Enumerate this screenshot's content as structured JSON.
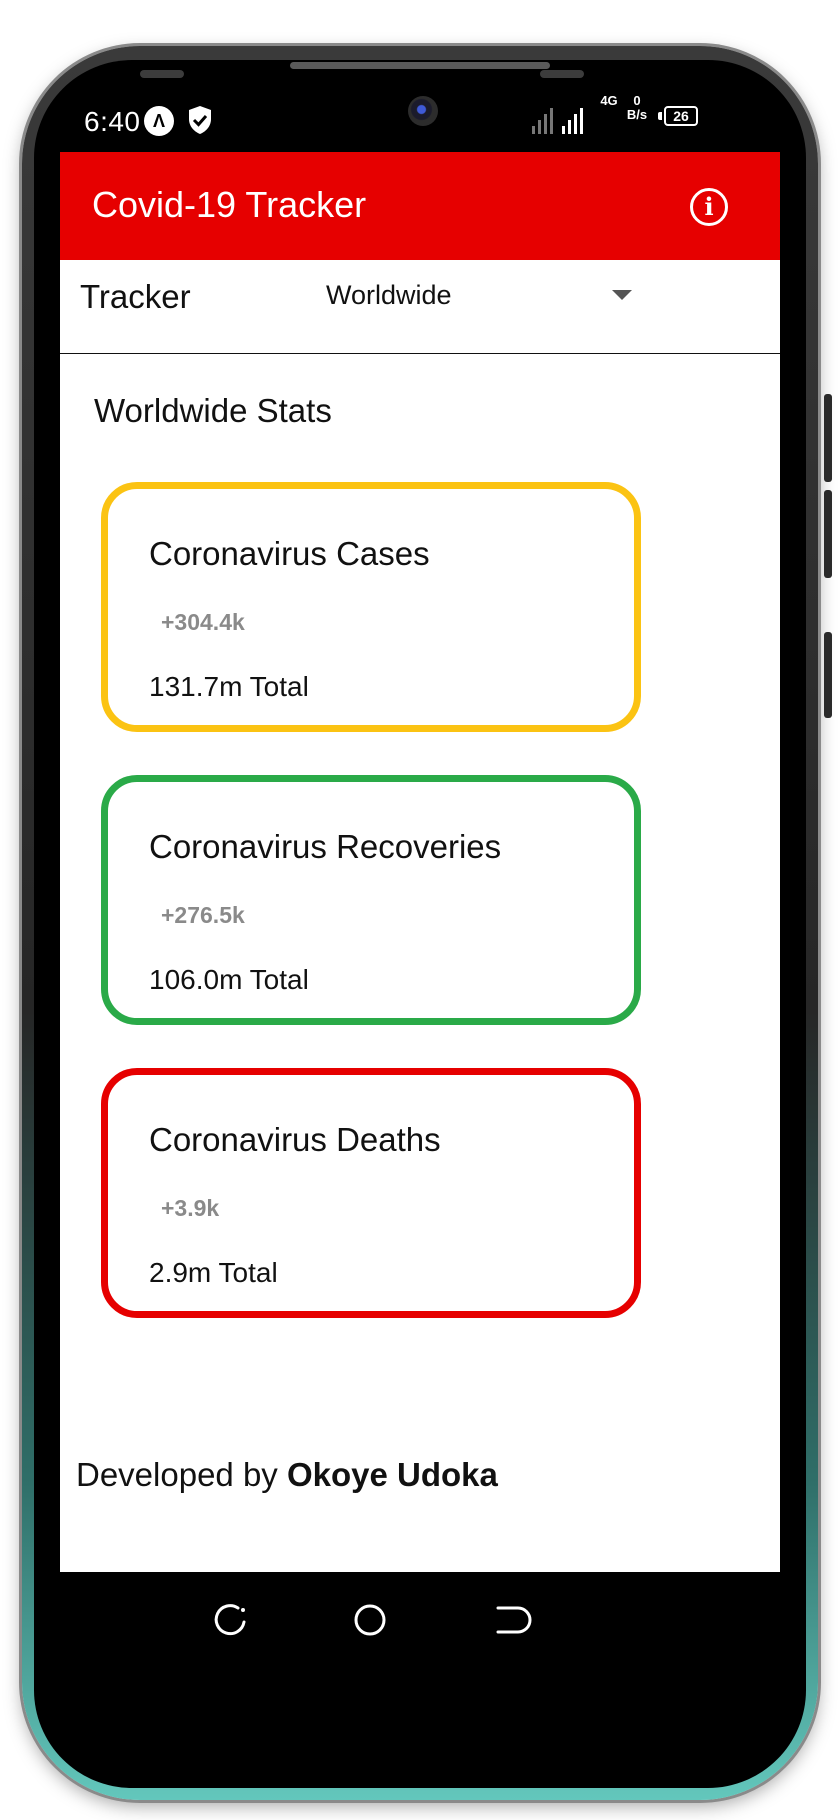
{
  "status_bar": {
    "time": "6:40",
    "network_type": "4G",
    "speed_value": "0",
    "speed_unit": "B/s",
    "battery": "26"
  },
  "app_bar": {
    "title": "Covid-19 Tracker",
    "info_icon": "info-icon"
  },
  "tracker": {
    "label": "Tracker",
    "selected_region": "Worldwide",
    "dropdown_icon": "chevron-down-icon"
  },
  "section_title": "Worldwide Stats",
  "cards": [
    {
      "title": "Coronavirus Cases",
      "delta": "+304.4k",
      "total": "131.7m Total",
      "color": "#fbc313"
    },
    {
      "title": "Coronavirus Recoveries",
      "delta": "+276.5k",
      "total": "106.0m Total",
      "color": "#2aaa48"
    },
    {
      "title": "Coronavirus Deaths",
      "delta": "+3.9k",
      "total": "2.9m Total",
      "color": "#e60000"
    }
  ],
  "footer": {
    "prefix": "Developed by ",
    "developer": "Okoye Udoka"
  },
  "colors": {
    "app_bar": "#e60000",
    "cases": "#fbc313",
    "recoveries": "#2aaa48",
    "deaths": "#e60000",
    "delta_text": "#8a8a8a"
  },
  "nav": {
    "recent_icon": "recent-apps-icon",
    "home_icon": "home-icon",
    "back_icon": "back-icon"
  }
}
